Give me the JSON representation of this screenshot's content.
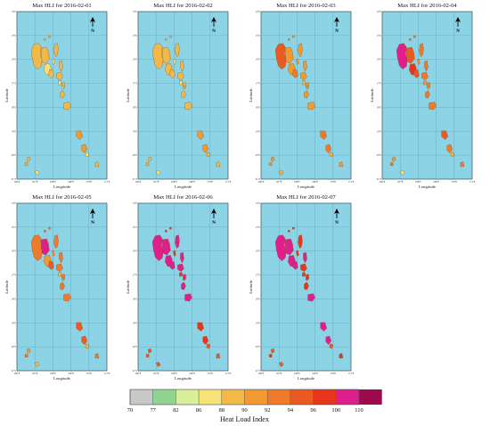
{
  "maps": [
    {
      "title": "Max HLI for 2016-02-01",
      "island_levels": [
        88,
        88,
        86,
        88,
        88,
        86,
        88,
        86,
        88,
        88,
        86,
        88,
        88,
        90,
        90,
        86,
        88,
        88,
        88,
        86,
        88,
        88
      ]
    },
    {
      "title": "Max HLI for 2016-02-02",
      "island_levels": [
        88,
        88,
        88,
        88,
        88,
        86,
        88,
        86,
        88,
        88,
        88,
        88,
        88,
        90,
        90,
        88,
        88,
        88,
        88,
        86,
        88,
        88
      ]
    },
    {
      "title": "Max HLI for 2016-02-03",
      "island_levels": [
        94,
        90,
        90,
        92,
        90,
        90,
        90,
        88,
        90,
        90,
        90,
        90,
        90,
        92,
        92,
        88,
        90,
        90,
        90,
        88,
        90,
        90
      ]
    },
    {
      "title": "Max HLI for 2016-02-04",
      "island_levels": [
        100,
        94,
        96,
        94,
        92,
        90,
        92,
        90,
        92,
        92,
        90,
        92,
        92,
        94,
        92,
        88,
        92,
        90,
        92,
        86,
        92,
        92
      ]
    },
    {
      "title": "Max HLI for 2016-02-05",
      "island_levels": [
        92,
        100,
        90,
        94,
        92,
        90,
        92,
        88,
        92,
        92,
        90,
        92,
        92,
        94,
        94,
        88,
        92,
        90,
        92,
        88,
        92,
        92
      ]
    },
    {
      "title": "Max HLI for 2016-02-06",
      "island_levels": [
        100,
        100,
        100,
        100,
        100,
        96,
        100,
        96,
        100,
        100,
        96,
        100,
        100,
        96,
        96,
        94,
        94,
        94,
        94,
        94,
        96,
        96
      ]
    },
    {
      "title": "Max HLI for 2016-02-07",
      "island_levels": [
        100,
        100,
        100,
        100,
        96,
        96,
        96,
        96,
        96,
        96,
        96,
        100,
        100,
        100,
        100,
        94,
        96,
        94,
        96,
        94,
        96,
        96
      ]
    }
  ],
  "axis": {
    "xlabel": "Longitude",
    "ylabel": "Latitude",
    "lon_ticks": [
      "166°E",
      "167°E",
      "168°E",
      "169°E",
      "170°E",
      "171°E"
    ],
    "lat_ticks": [
      "14°S",
      "15°S",
      "16°S",
      "17°S",
      "18°S",
      "19°S",
      "20°S",
      "21°S"
    ]
  },
  "north_label": "N",
  "legend": {
    "title": "Heat Load Index",
    "breaks": [
      70,
      77,
      82,
      86,
      88,
      90,
      92,
      94,
      96,
      100,
      110
    ],
    "colors": [
      "#c8c8c8",
      "#8fd48f",
      "#d9ef9a",
      "#f7e27a",
      "#f2b948",
      "#f29a30",
      "#ef7a2a",
      "#ec5a24",
      "#e8361c",
      "#e0208a",
      "#9b0b4e"
    ]
  },
  "colors": {
    "ocean": "#8dd3e6",
    "grid": "#5a9fb5",
    "island_outline": "#7a4a1a"
  }
}
